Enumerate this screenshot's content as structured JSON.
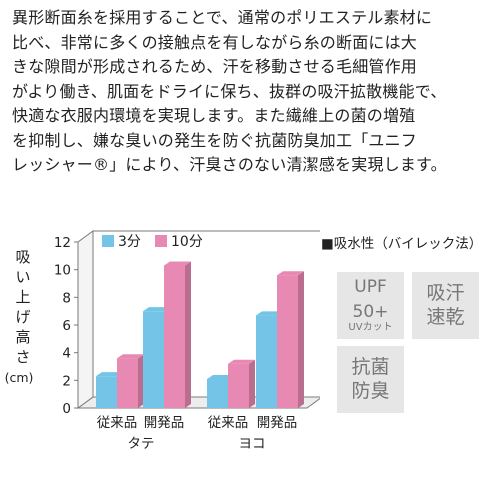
{
  "description": [
    "異形断面糸を採用することで、通常のポリエステル素材に",
    "比べ、非常に多くの接触点を有しながら糸の断面には大",
    "きな隙間が形成されるため、汗を移動させる毛細管作用",
    "がより働き、肌面をドライに保ち、抜群の吸汗拡散機能で、",
    "快適な衣服内環境を実現します。また繊維上の菌の増殖",
    "を抑制し、嫌な臭いの発生を防ぐ抗菌防臭加工「ユニフ",
    "レッシャー®」により、汗臭さのない清潔感を実現します。"
  ],
  "test_note": "■吸水性（バイレック法）",
  "badges": {
    "upf": {
      "line1": "UPF",
      "line2": "50+",
      "line3": "UVカット"
    },
    "sweat": {
      "line1": "吸汗",
      "line2": "速乾"
    },
    "antibac": {
      "line1": "抗菌",
      "line2": "防臭"
    }
  },
  "chart_data": {
    "type": "bar",
    "ylabel": "吸い上げ高さ(cm)",
    "ylim": [
      0,
      12
    ],
    "yticks": [
      "0",
      "2",
      "4",
      "6",
      "8",
      "10",
      "12"
    ],
    "categories": [
      "従来品",
      "開発品",
      "従来品",
      "開発品"
    ],
    "groups": [
      "タテ",
      "ヨコ"
    ],
    "series": [
      {
        "name": "3分",
        "color": "#74c4e8",
        "values": [
          2.3,
          7.0,
          2.1,
          6.7
        ]
      },
      {
        "name": "10分",
        "color": "#e889b3",
        "values": [
          3.6,
          10.3,
          3.2,
          9.6
        ]
      }
    ],
    "legend_position": "top-left",
    "grid": false
  }
}
